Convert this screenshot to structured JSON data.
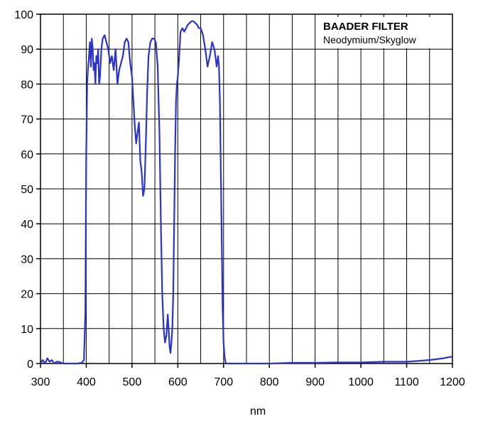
{
  "chart_data": {
    "type": "line",
    "title": "BAADER FILTER",
    "subtitle": "Neodymium/Skyglow",
    "xlabel": "nm",
    "ylabel": "",
    "xlim": [
      300,
      1200
    ],
    "ylim": [
      0,
      100
    ],
    "xticks": [
      300,
      400,
      500,
      600,
      700,
      800,
      900,
      1000,
      1100,
      1200
    ],
    "yticks": [
      0,
      10,
      20,
      30,
      40,
      50,
      60,
      70,
      80,
      90,
      100
    ],
    "grid": true,
    "legend_placement": "top-right",
    "colors": {
      "line": "#2b33c8",
      "grid": "#000000"
    },
    "series": [
      {
        "x": [
          300,
          305,
          310,
          315,
          320,
          325,
          330,
          335,
          340,
          350,
          360,
          370,
          380,
          390,
          395,
          398,
          400,
          402,
          404,
          406,
          408,
          410,
          412,
          414,
          416,
          418,
          420,
          422,
          424,
          426,
          428,
          430,
          433,
          436,
          440,
          444,
          448,
          452,
          456,
          460,
          464,
          468,
          472,
          476,
          480,
          484,
          488,
          492,
          496,
          500,
          503,
          506,
          509,
          512,
          515,
          518,
          521,
          524,
          527,
          530,
          533,
          536,
          540,
          544,
          548,
          552,
          556,
          560,
          563,
          566,
          569,
          572,
          575,
          578,
          580,
          582,
          584,
          586,
          588,
          590,
          592,
          594,
          596,
          598,
          600,
          603,
          606,
          610,
          614,
          618,
          622,
          626,
          630,
          634,
          638,
          642,
          646,
          650,
          655,
          660,
          665,
          670,
          675,
          680,
          685,
          688,
          690,
          692,
          694,
          696,
          698,
          700,
          702,
          704,
          706,
          708,
          710,
          712,
          714,
          716,
          718,
          720,
          724,
          728,
          732,
          740,
          750,
          760,
          780,
          800,
          850,
          900,
          950,
          1000,
          1050,
          1100,
          1150,
          1180,
          1200
        ],
        "y": [
          0,
          1,
          0,
          1.5,
          0.5,
          1,
          0,
          0.5,
          0.5,
          0,
          0,
          0,
          0,
          0.2,
          1,
          15,
          60,
          80,
          85,
          88,
          92,
          85,
          93,
          90,
          84,
          86,
          80,
          88,
          86,
          90,
          80,
          82,
          90,
          93,
          94,
          92,
          90,
          86,
          88,
          84,
          90,
          80,
          84,
          86,
          88,
          92,
          93,
          92,
          86,
          82,
          75,
          68,
          63,
          66,
          69,
          58,
          55,
          48,
          50,
          62,
          78,
          88,
          92,
          93,
          93,
          92,
          85,
          65,
          40,
          20,
          10,
          6,
          8,
          14,
          10,
          5,
          3,
          6,
          10,
          20,
          40,
          60,
          75,
          80,
          82,
          88,
          95,
          96,
          95,
          96,
          97,
          97.5,
          98,
          98,
          97.5,
          97,
          96,
          96,
          94,
          90,
          85,
          88,
          92,
          90,
          85,
          88,
          85,
          75,
          55,
          35,
          15,
          6,
          2,
          0.5,
          0,
          0,
          0,
          0,
          0,
          0,
          0,
          0,
          0,
          0,
          0,
          0,
          0,
          0,
          0,
          0,
          0.2,
          0.2,
          0.3,
          0.3,
          0.5,
          0.5,
          1,
          1.5,
          2
        ]
      }
    ]
  }
}
